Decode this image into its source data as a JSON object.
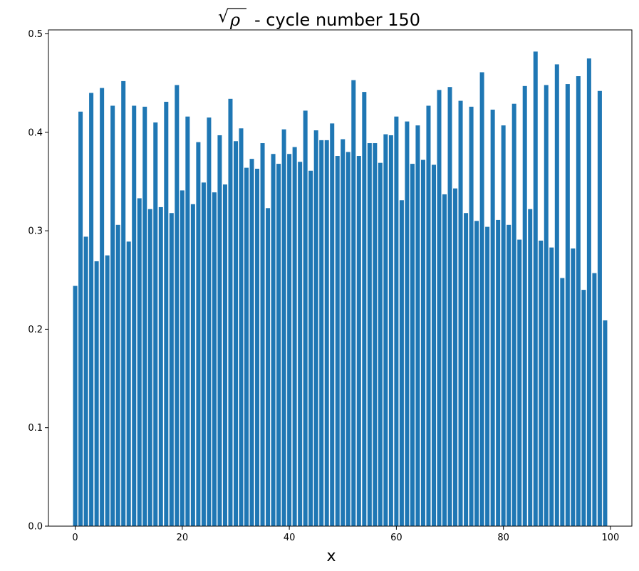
{
  "chart_data": {
    "type": "bar",
    "title": "- cycle number 150",
    "title_math": "ρ",
    "xlabel": "x",
    "ylabel": "",
    "xlim": [
      -5,
      104
    ],
    "ylim": [
      0,
      0.504
    ],
    "xticks": [
      0,
      20,
      40,
      60,
      80,
      100
    ],
    "yticks": [
      0.0,
      0.1,
      0.2,
      0.3,
      0.4,
      0.5
    ],
    "xtick_labels": [
      "0",
      "20",
      "40",
      "60",
      "80",
      "100"
    ],
    "ytick_labels": [
      "0.0",
      "0.1",
      "0.2",
      "0.3",
      "0.4",
      "0.5"
    ],
    "bar_color": "#1f77b4",
    "bar_width": 0.8,
    "x": [
      0,
      1,
      2,
      3,
      4,
      5,
      6,
      7,
      8,
      9,
      10,
      11,
      12,
      13,
      14,
      15,
      16,
      17,
      18,
      19,
      20,
      21,
      22,
      23,
      24,
      25,
      26,
      27,
      28,
      29,
      30,
      31,
      32,
      33,
      34,
      35,
      36,
      37,
      38,
      39,
      40,
      41,
      42,
      43,
      44,
      45,
      46,
      47,
      48,
      49,
      50,
      51,
      52,
      53,
      54,
      55,
      56,
      57,
      58,
      59,
      60,
      61,
      62,
      63,
      64,
      65,
      66,
      67,
      68,
      69,
      70,
      71,
      72,
      73,
      74,
      75,
      76,
      77,
      78,
      79,
      80,
      81,
      82,
      83,
      84,
      85,
      86,
      87,
      88,
      89,
      90,
      91,
      92,
      93,
      94,
      95,
      96,
      97,
      98,
      99
    ],
    "values": [
      0.244,
      0.421,
      0.294,
      0.44,
      0.269,
      0.445,
      0.275,
      0.427,
      0.306,
      0.452,
      0.289,
      0.427,
      0.333,
      0.426,
      0.322,
      0.41,
      0.324,
      0.431,
      0.318,
      0.448,
      0.341,
      0.416,
      0.327,
      0.39,
      0.349,
      0.415,
      0.339,
      0.397,
      0.347,
      0.434,
      0.391,
      0.404,
      0.364,
      0.373,
      0.363,
      0.389,
      0.323,
      0.378,
      0.368,
      0.403,
      0.378,
      0.385,
      0.37,
      0.422,
      0.361,
      0.402,
      0.392,
      0.392,
      0.409,
      0.376,
      0.393,
      0.38,
      0.453,
      0.376,
      0.441,
      0.389,
      0.389,
      0.369,
      0.398,
      0.397,
      0.416,
      0.331,
      0.411,
      0.368,
      0.407,
      0.372,
      0.427,
      0.367,
      0.443,
      0.337,
      0.446,
      0.343,
      0.432,
      0.318,
      0.426,
      0.31,
      0.461,
      0.304,
      0.423,
      0.311,
      0.407,
      0.306,
      0.429,
      0.291,
      0.447,
      0.322,
      0.482,
      0.29,
      0.448,
      0.283,
      0.469,
      0.252,
      0.449,
      0.282,
      0.457,
      0.24,
      0.475,
      0.257,
      0.442,
      0.209
    ]
  }
}
